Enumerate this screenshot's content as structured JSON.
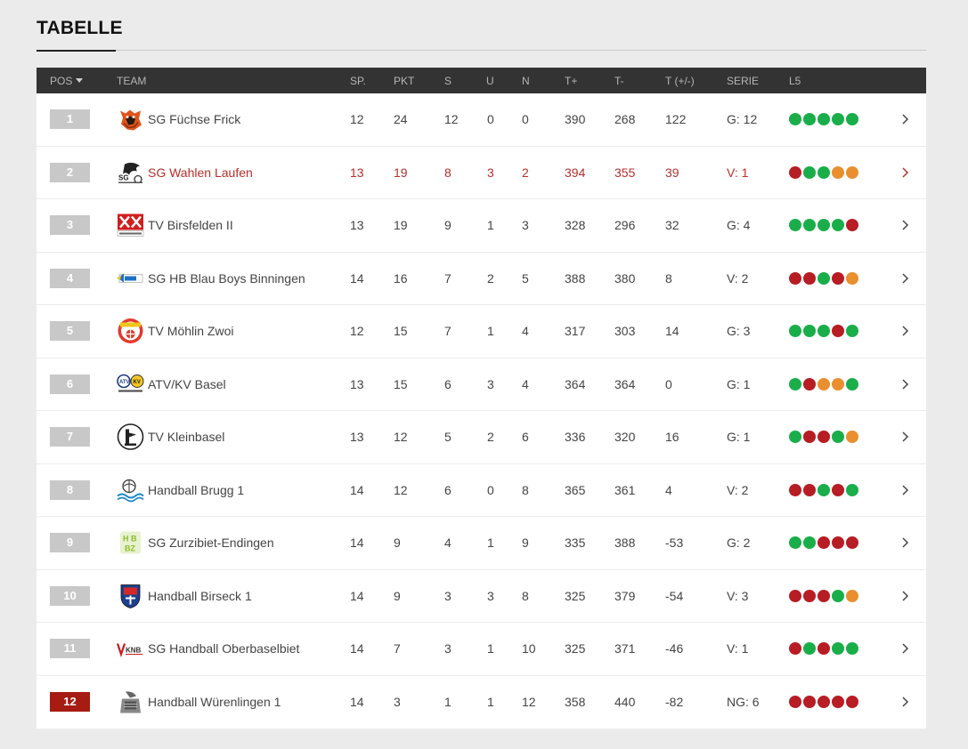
{
  "title": "TABELLE",
  "colors": {
    "win": "#1aae4a",
    "loss": "#b71d24",
    "draw": "#e98f2f",
    "header_bg": "#333333",
    "highlight": "#b5302a",
    "relegation": "#a61b12"
  },
  "columns": {
    "pos": "POS",
    "team": "TEAM",
    "sp": "SP.",
    "pkt": "PKT",
    "s": "S",
    "u": "U",
    "n": "N",
    "tplus": "T+",
    "tminus": "T-",
    "tdiff": "T (+/-)",
    "serie": "SERIE",
    "l5": "L5"
  },
  "rows": [
    {
      "pos": "1",
      "team": "SG Füchse Frick",
      "sp": "12",
      "pkt": "24",
      "s": "12",
      "u": "0",
      "n": "0",
      "tplus": "390",
      "tminus": "268",
      "tdiff": "122",
      "serie": "G: 12",
      "l5": [
        "W",
        "W",
        "W",
        "W",
        "W"
      ],
      "logo": "fox-logo"
    },
    {
      "pos": "2",
      "team": "SG Wahlen Laufen",
      "sp": "13",
      "pkt": "19",
      "s": "8",
      "u": "3",
      "n": "2",
      "tplus": "394",
      "tminus": "355",
      "tdiff": "39",
      "serie": "V: 1",
      "l5": [
        "L",
        "W",
        "W",
        "D",
        "D"
      ],
      "logo": "dragon-logo",
      "highlight": true
    },
    {
      "pos": "3",
      "team": "TV Birsfelden II",
      "sp": "13",
      "pkt": "19",
      "s": "9",
      "u": "1",
      "n": "3",
      "tplus": "328",
      "tminus": "296",
      "tdiff": "32",
      "serie": "G: 4",
      "l5": [
        "W",
        "W",
        "W",
        "W",
        "L"
      ],
      "logo": "birsfelden-logo"
    },
    {
      "pos": "4",
      "team": "SG HB Blau Boys Binningen",
      "sp": "14",
      "pkt": "16",
      "s": "7",
      "u": "2",
      "n": "5",
      "tplus": "388",
      "tminus": "380",
      "tdiff": "8",
      "serie": "V: 2",
      "l5": [
        "L",
        "L",
        "W",
        "L",
        "D"
      ],
      "logo": "blau-boys-logo"
    },
    {
      "pos": "5",
      "team": "TV Möhlin Zwoi",
      "sp": "12",
      "pkt": "15",
      "s": "7",
      "u": "1",
      "n": "4",
      "tplus": "317",
      "tminus": "303",
      "tdiff": "14",
      "serie": "G: 3",
      "l5": [
        "W",
        "W",
        "W",
        "L",
        "W"
      ],
      "logo": "moehlin-logo"
    },
    {
      "pos": "6",
      "team": "ATV/KV Basel",
      "sp": "13",
      "pkt": "15",
      "s": "6",
      "u": "3",
      "n": "4",
      "tplus": "364",
      "tminus": "364",
      "tdiff": "0",
      "serie": "G: 1",
      "l5": [
        "W",
        "L",
        "D",
        "D",
        "W"
      ],
      "logo": "atv-kv-logo"
    },
    {
      "pos": "7",
      "team": "TV Kleinbasel",
      "sp": "13",
      "pkt": "12",
      "s": "5",
      "u": "2",
      "n": "6",
      "tplus": "336",
      "tminus": "320",
      "tdiff": "16",
      "serie": "G: 1",
      "l5": [
        "W",
        "L",
        "L",
        "W",
        "D"
      ],
      "logo": "kleinbasel-logo"
    },
    {
      "pos": "8",
      "team": "Handball Brugg 1",
      "sp": "14",
      "pkt": "12",
      "s": "6",
      "u": "0",
      "n": "8",
      "tplus": "365",
      "tminus": "361",
      "tdiff": "4",
      "serie": "V: 2",
      "l5": [
        "L",
        "L",
        "W",
        "L",
        "W"
      ],
      "logo": "brugg-logo"
    },
    {
      "pos": "9",
      "team": "SG Zurzibiet-Endingen",
      "sp": "14",
      "pkt": "9",
      "s": "4",
      "u": "1",
      "n": "9",
      "tplus": "335",
      "tminus": "388",
      "tdiff": "-53",
      "serie": "G: 2",
      "l5": [
        "W",
        "W",
        "L",
        "L",
        "L"
      ],
      "logo": "hbz-logo"
    },
    {
      "pos": "10",
      "team": "Handball Birseck 1",
      "sp": "14",
      "pkt": "9",
      "s": "3",
      "u": "3",
      "n": "8",
      "tplus": "325",
      "tminus": "379",
      "tdiff": "-54",
      "serie": "V: 3",
      "l5": [
        "L",
        "L",
        "L",
        "W",
        "D"
      ],
      "logo": "birseck-logo"
    },
    {
      "pos": "11",
      "team": "SG Handball Oberbaselbiet",
      "sp": "14",
      "pkt": "7",
      "s": "3",
      "u": "1",
      "n": "10",
      "tplus": "325",
      "tminus": "371",
      "tdiff": "-46",
      "serie": "V: 1",
      "l5": [
        "L",
        "W",
        "L",
        "W",
        "W"
      ],
      "logo": "oberbaselbiet-logo"
    },
    {
      "pos": "12",
      "team": "Handball Würenlingen 1",
      "sp": "14",
      "pkt": "3",
      "s": "1",
      "u": "1",
      "n": "12",
      "tplus": "358",
      "tminus": "440",
      "tdiff": "-82",
      "serie": "NG: 6",
      "l5": [
        "L",
        "L",
        "L",
        "L",
        "L"
      ],
      "logo": "wuerenlingen-logo",
      "relegation": true
    }
  ]
}
